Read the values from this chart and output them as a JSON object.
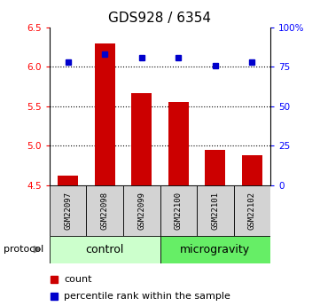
{
  "title": "GDS928 / 6354",
  "samples": [
    "GSM22097",
    "GSM22098",
    "GSM22099",
    "GSM22100",
    "GSM22101",
    "GSM22102"
  ],
  "count_values": [
    4.62,
    6.3,
    5.67,
    5.55,
    4.95,
    4.88
  ],
  "percentile_values": [
    78,
    83,
    81,
    81,
    76,
    78
  ],
  "ylim_left": [
    4.5,
    6.5
  ],
  "ylim_right": [
    0,
    100
  ],
  "yticks_left": [
    4.5,
    5.0,
    5.5,
    6.0,
    6.5
  ],
  "yticks_right": [
    0,
    25,
    50,
    75,
    100
  ],
  "bar_color": "#cc0000",
  "dot_color": "#0000cc",
  "bar_bottom": 4.5,
  "groups": [
    {
      "label": "control",
      "indices": [
        0,
        1,
        2
      ],
      "color": "#ccffcc"
    },
    {
      "label": "microgravity",
      "indices": [
        3,
        4,
        5
      ],
      "color": "#66ee66"
    }
  ],
  "protocol_label": "protocol",
  "legend_count_label": "count",
  "legend_pct_label": "percentile rank within the sample",
  "grid_yticks": [
    5.0,
    5.5,
    6.0
  ],
  "title_fontsize": 11,
  "tick_fontsize": 7.5,
  "sample_fontsize": 6.5,
  "group_fontsize": 9,
  "legend_fontsize": 8
}
